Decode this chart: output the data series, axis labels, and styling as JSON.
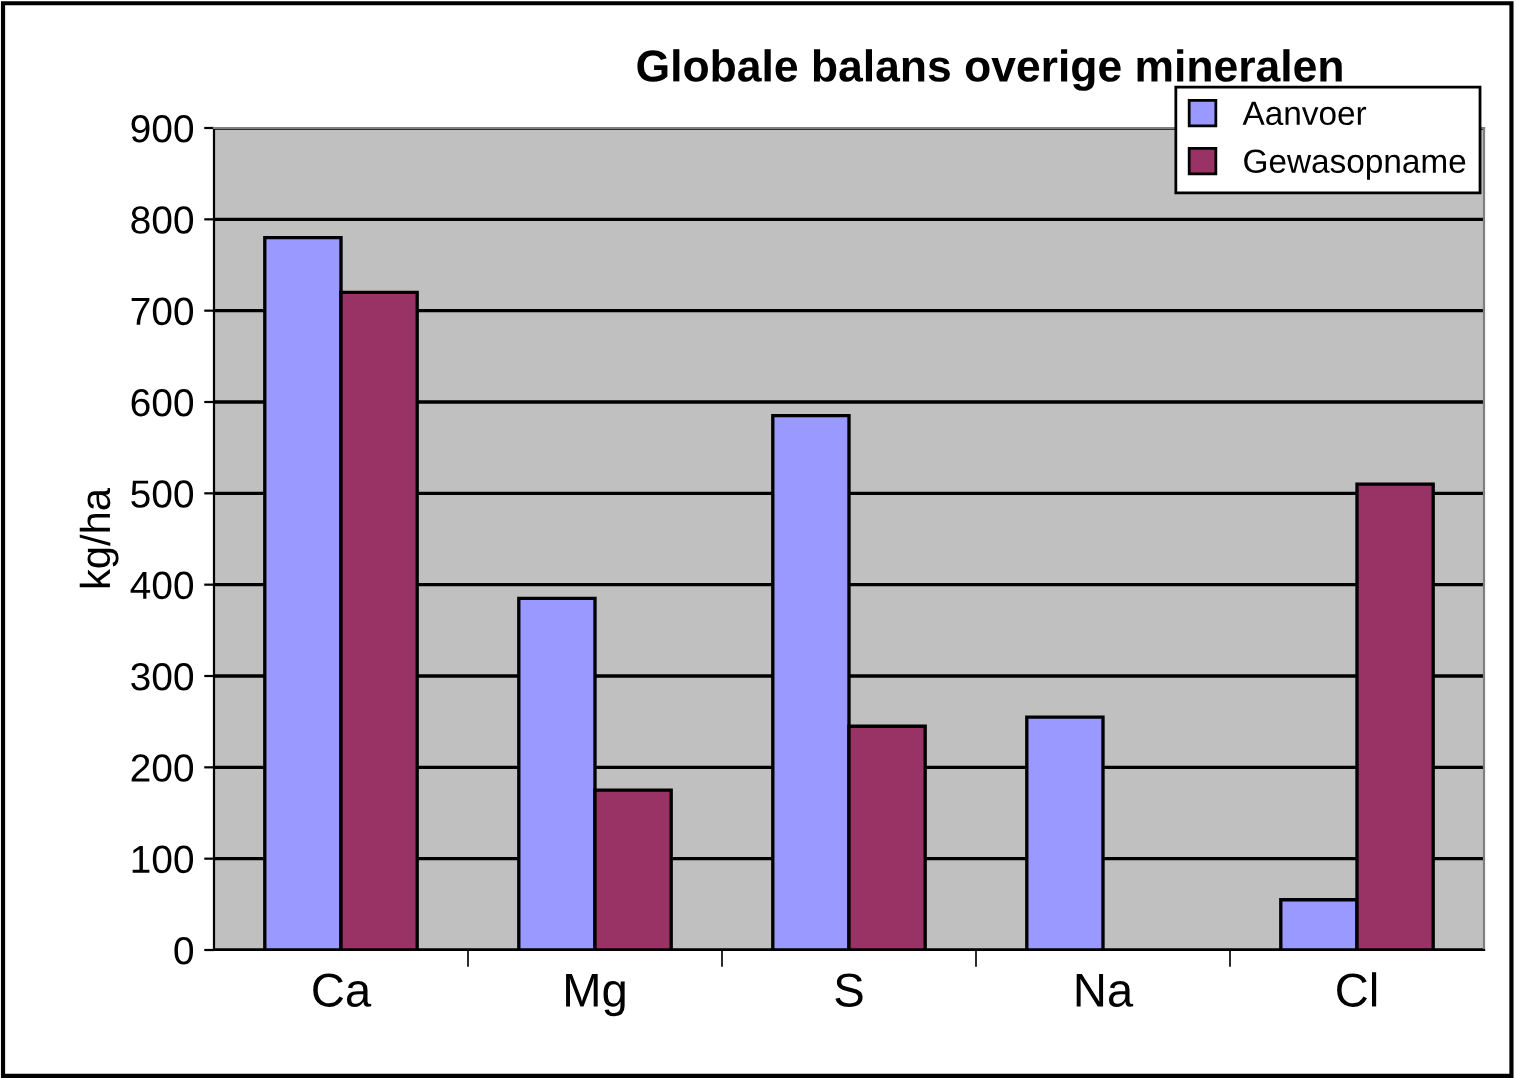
{
  "chart_data": {
    "type": "bar",
    "title": "Globale balans overige mineralen",
    "ylabel": "kg/ha",
    "categories": [
      "Ca",
      "Mg",
      "S",
      "Na",
      "Cl"
    ],
    "series": [
      {
        "name": "Aanvoer",
        "color": "#9999ff",
        "values": [
          780,
          385,
          585,
          255,
          55
        ]
      },
      {
        "name": "Gewasopname",
        "color": "#993366",
        "values": [
          720,
          175,
          245,
          null,
          510
        ]
      }
    ],
    "ylim": [
      0,
      900
    ],
    "yticks": [
      0,
      100,
      200,
      300,
      400,
      500,
      600,
      700,
      800,
      900
    ],
    "grid": "y",
    "legend": "top right"
  }
}
